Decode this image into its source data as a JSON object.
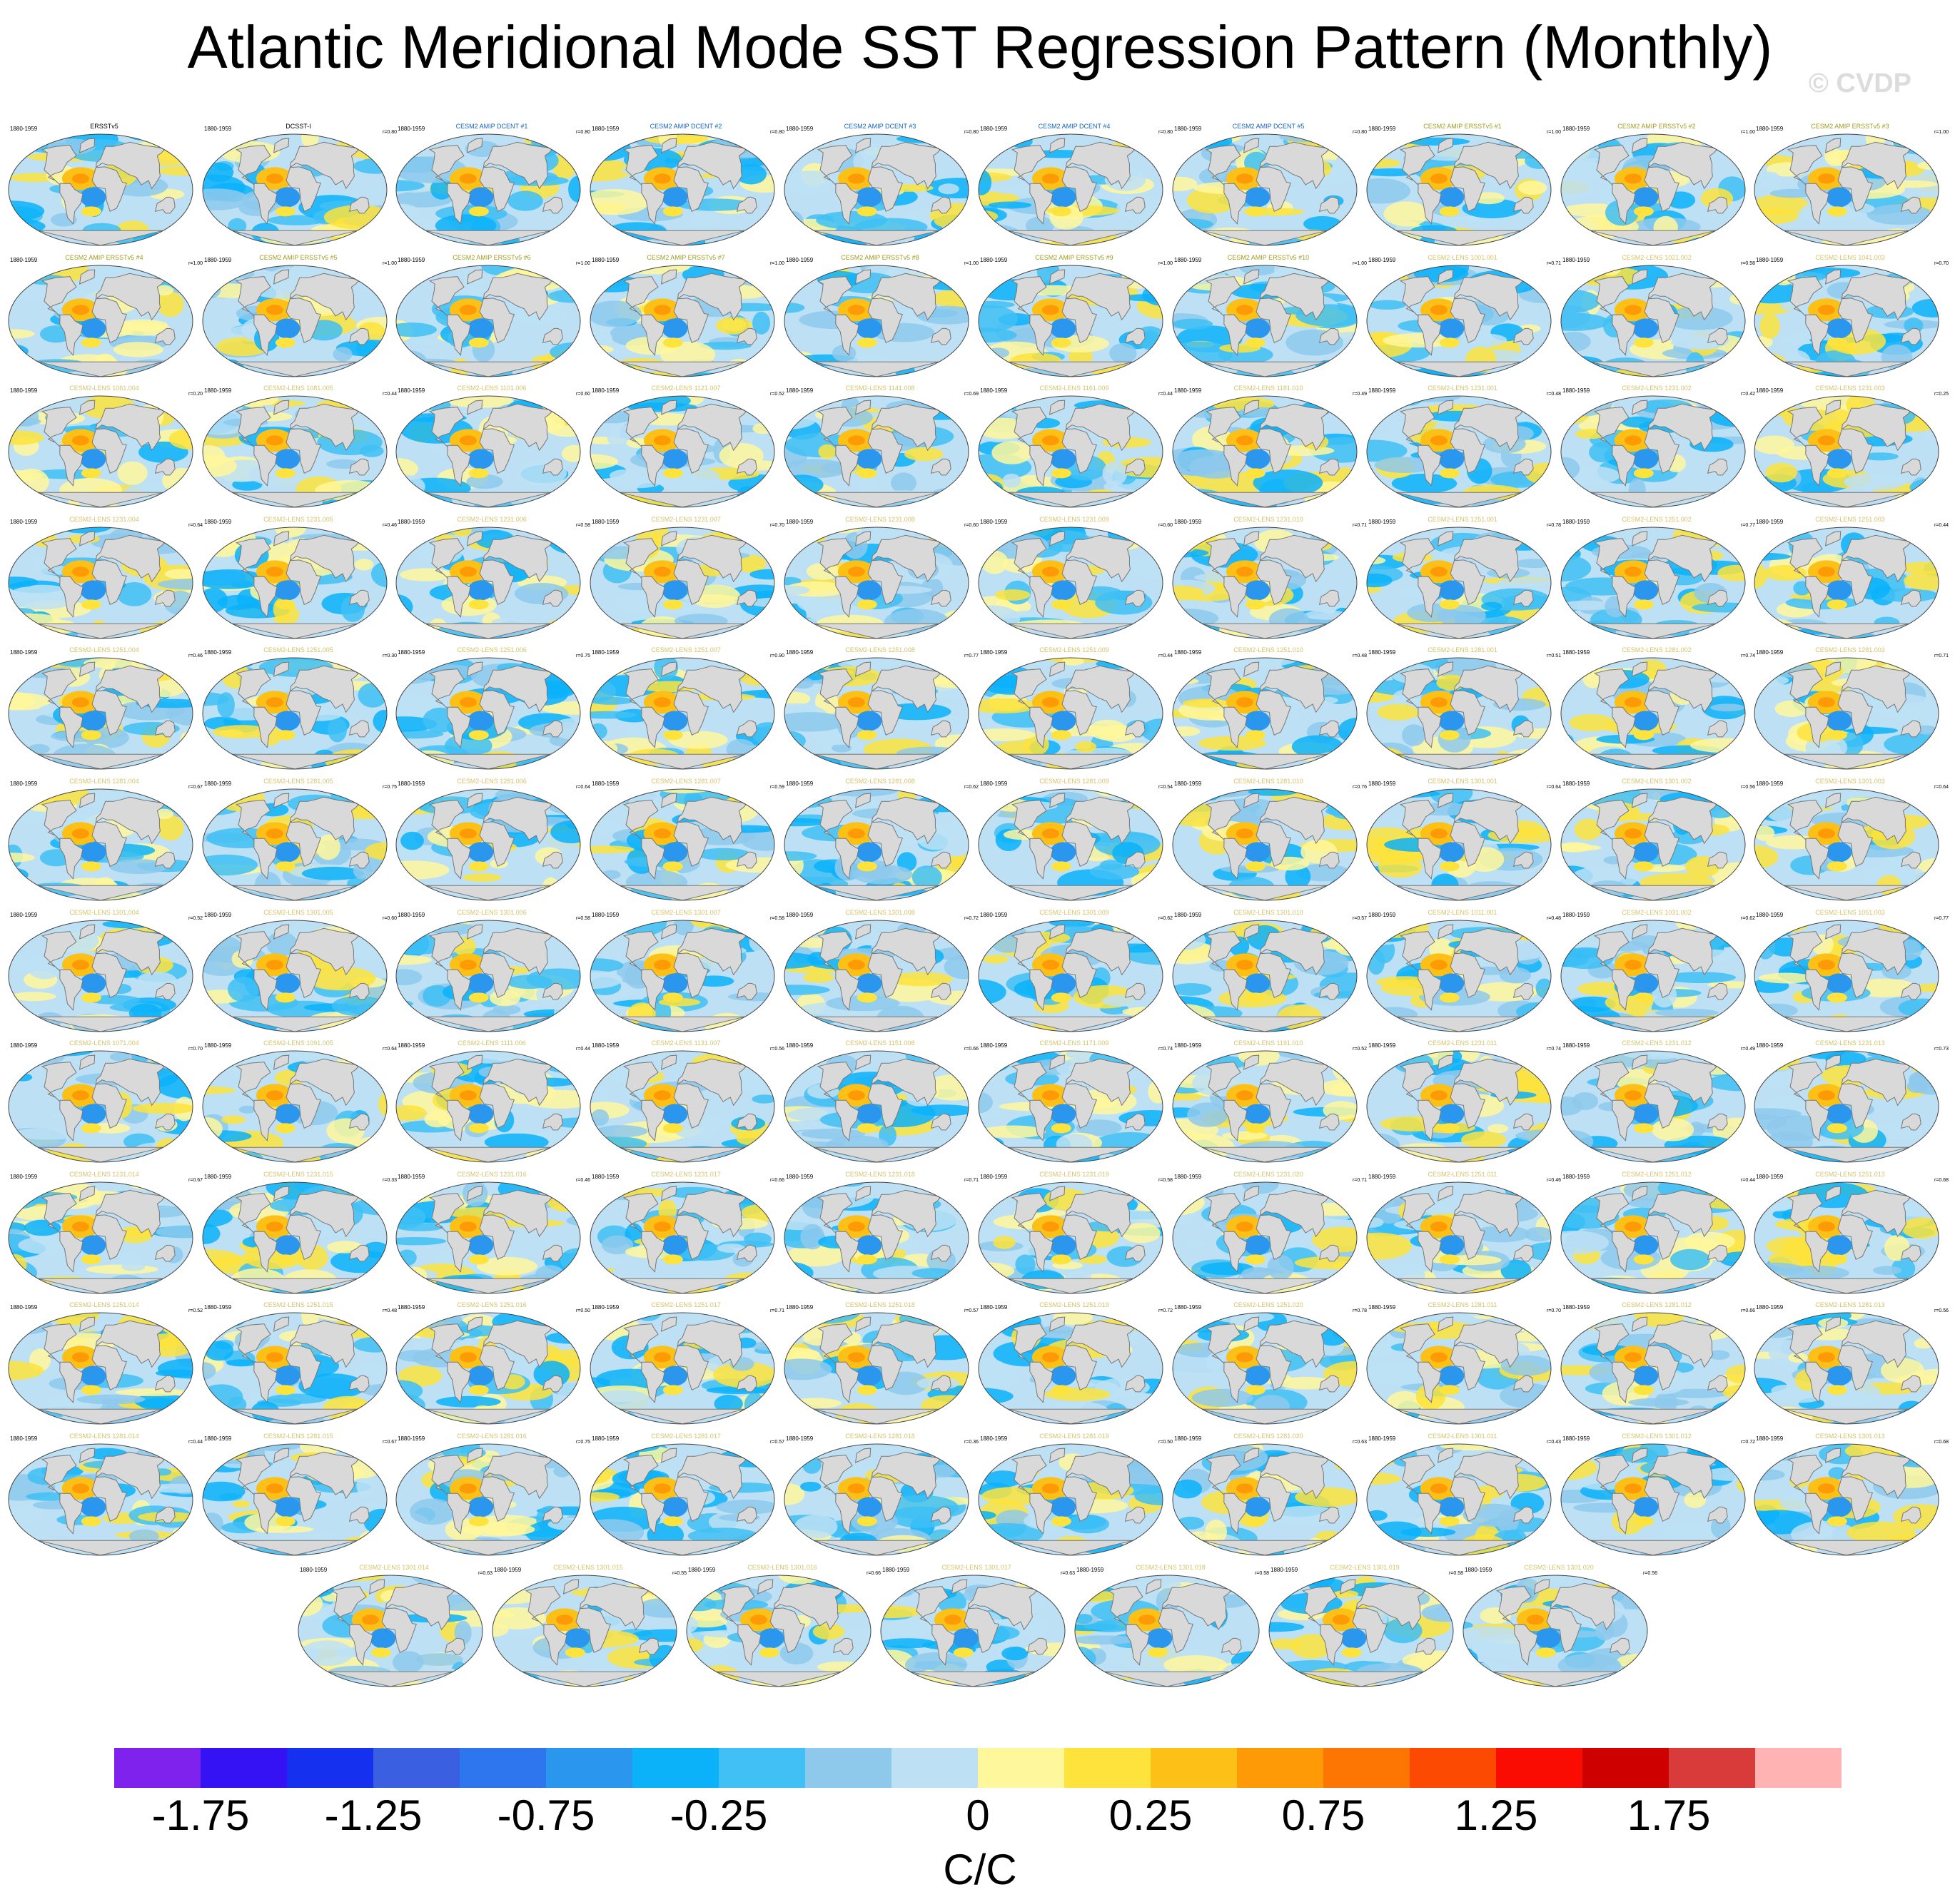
{
  "title": "Atlantic Meridional Mode SST Regression Pattern (Monthly)",
  "watermark": "© CVDP",
  "colors": {
    "obs_title": "#000000",
    "amip_dcent_title": "#1565c0",
    "amip_ersst_title": "#9e9d24",
    "lens_title": "#d4c36a",
    "land": "#d9d9d9",
    "coast": "#777777"
  },
  "chart_data": {
    "type": "map-panels",
    "period": "1880-1959",
    "variable": "SST regression on AMM",
    "colorbar": {
      "units": "C/C",
      "tick_labels": [
        "-1.75",
        "-1.25",
        "-0.75",
        "-0.25",
        "0",
        "0.25",
        "0.75",
        "1.25",
        "1.75"
      ],
      "colors": [
        "#8022ee",
        "#3512f4",
        "#1630f0",
        "#3a5fe0",
        "#2e76ee",
        "#2a96ee",
        "#0bb2fa",
        "#40c0f4",
        "#8ec9ec",
        "#bde0f4",
        "#fff79c",
        "#fde33c",
        "#fdc016",
        "#fd9a06",
        "#fd7502",
        "#fd4a02",
        "#fb0c02",
        "#cf0000",
        "#d93a3a",
        "#ffb3b3"
      ]
    },
    "panels": [
      {
        "title": "ERSSTv5",
        "group": "obs",
        "r": ""
      },
      {
        "title": "DCSST-I",
        "group": "obs",
        "r": "r=0.80"
      },
      {
        "title": "CESM2 AMIP DCENT #1",
        "group": "amip_dcent",
        "r": "r=0.80"
      },
      {
        "title": "CESM2 AMIP DCENT #2",
        "group": "amip_dcent",
        "r": "r=0.80"
      },
      {
        "title": "CESM2 AMIP DCENT #3",
        "group": "amip_dcent",
        "r": "r=0.80"
      },
      {
        "title": "CESM2 AMIP DCENT #4",
        "group": "amip_dcent",
        "r": "r=0.80"
      },
      {
        "title": "CESM2 AMIP DCENT #5",
        "group": "amip_dcent",
        "r": "r=0.80"
      },
      {
        "title": "CESM2 AMIP ERSSTv5 #1",
        "group": "amip_ersst",
        "r": "r=1.00"
      },
      {
        "title": "CESM2 AMIP ERSSTv5 #2",
        "group": "amip_ersst",
        "r": "r=1.00"
      },
      {
        "title": "CESM2 AMIP ERSSTv5 #3",
        "group": "amip_ersst",
        "r": "r=1.00"
      },
      {
        "title": "CESM2 AMIP ERSSTv5 #4",
        "group": "amip_ersst",
        "r": "r=1.00"
      },
      {
        "title": "CESM2 AMIP ERSSTv5 #5",
        "group": "amip_ersst",
        "r": "r=1.00"
      },
      {
        "title": "CESM2 AMIP ERSSTv5 #6",
        "group": "amip_ersst",
        "r": "r=1.00"
      },
      {
        "title": "CESM2 AMIP ERSSTv5 #7",
        "group": "amip_ersst",
        "r": "r=1.00"
      },
      {
        "title": "CESM2 AMIP ERSSTv5 #8",
        "group": "amip_ersst",
        "r": "r=1.00"
      },
      {
        "title": "CESM2 AMIP ERSSTv5 #9",
        "group": "amip_ersst",
        "r": "r=1.00"
      },
      {
        "title": "CESM2 AMIP ERSSTv5 #10",
        "group": "amip_ersst",
        "r": "r=1.00"
      },
      {
        "title": "CESM2-LENS 1001.001",
        "group": "lens",
        "r": "r=0.71"
      },
      {
        "title": "CESM2-LENS 1021.002",
        "group": "lens",
        "r": "r=0.58"
      },
      {
        "title": "CESM2-LENS 1041.003",
        "group": "lens",
        "r": "r=0.70"
      },
      {
        "title": "CESM2-LENS 1061.004",
        "group": "lens",
        "r": "r=0.20"
      },
      {
        "title": "CESM2-LENS 1081.005",
        "group": "lens",
        "r": "r=0.44"
      },
      {
        "title": "CESM2-LENS 1101.006",
        "group": "lens",
        "r": "r=0.60"
      },
      {
        "title": "CESM2-LENS 1121.007",
        "group": "lens",
        "r": "r=0.52"
      },
      {
        "title": "CESM2-LENS 1141.008",
        "group": "lens",
        "r": "r=0.69"
      },
      {
        "title": "CESM2-LENS 1161.009",
        "group": "lens",
        "r": "r=0.44"
      },
      {
        "title": "CESM2-LENS 1181.010",
        "group": "lens",
        "r": "r=0.49"
      },
      {
        "title": "CESM2-LENS 1231.001",
        "group": "lens",
        "r": "r=0.48"
      },
      {
        "title": "CESM2-LENS 1231.002",
        "group": "lens",
        "r": "r=0.42"
      },
      {
        "title": "CESM2-LENS 1231.003",
        "group": "lens",
        "r": "r=0.25"
      },
      {
        "title": "CESM2-LENS 1231.004",
        "group": "lens",
        "r": "r=0.64"
      },
      {
        "title": "CESM2-LENS 1231.005",
        "group": "lens",
        "r": "r=0.46"
      },
      {
        "title": "CESM2-LENS 1231.006",
        "group": "lens",
        "r": "r=0.58"
      },
      {
        "title": "CESM2-LENS 1231.007",
        "group": "lens",
        "r": "r=0.70"
      },
      {
        "title": "CESM2-LENS 1231.008",
        "group": "lens",
        "r": "r=0.60"
      },
      {
        "title": "CESM2-LENS 1231.009",
        "group": "lens",
        "r": "r=0.60"
      },
      {
        "title": "CESM2-LENS 1231.010",
        "group": "lens",
        "r": "r=0.71"
      },
      {
        "title": "CESM2-LENS 1251.001",
        "group": "lens",
        "r": "r=0.78"
      },
      {
        "title": "CESM2-LENS 1251.002",
        "group": "lens",
        "r": "r=0.77"
      },
      {
        "title": "CESM2-LENS 1251.003",
        "group": "lens",
        "r": "r=0.44"
      },
      {
        "title": "CESM2-LENS 1251.004",
        "group": "lens",
        "r": "r=0.46"
      },
      {
        "title": "CESM2-LENS 1251.005",
        "group": "lens",
        "r": "r=0.30"
      },
      {
        "title": "CESM2-LENS 1251.006",
        "group": "lens",
        "r": "r=0.75"
      },
      {
        "title": "CESM2-LENS 1251.007",
        "group": "lens",
        "r": "r=0.90"
      },
      {
        "title": "CESM2-LENS 1251.008",
        "group": "lens",
        "r": "r=0.77"
      },
      {
        "title": "CESM2-LENS 1251.009",
        "group": "lens",
        "r": "r=0.44"
      },
      {
        "title": "CESM2-LENS 1251.010",
        "group": "lens",
        "r": "r=0.48"
      },
      {
        "title": "CESM2-LENS 1281.001",
        "group": "lens",
        "r": "r=0.51"
      },
      {
        "title": "CESM2-LENS 1281.002",
        "group": "lens",
        "r": "r=0.74"
      },
      {
        "title": "CESM2-LENS 1281.003",
        "group": "lens",
        "r": "r=0.71"
      },
      {
        "title": "CESM2-LENS 1281.004",
        "group": "lens",
        "r": "r=0.67"
      },
      {
        "title": "CESM2-LENS 1281.005",
        "group": "lens",
        "r": "r=0.75"
      },
      {
        "title": "CESM2-LENS 1281.006",
        "group": "lens",
        "r": "r=0.64"
      },
      {
        "title": "CESM2-LENS 1281.007",
        "group": "lens",
        "r": "r=0.59"
      },
      {
        "title": "CESM2-LENS 1281.008",
        "group": "lens",
        "r": "r=0.62"
      },
      {
        "title": "CESM2-LENS 1281.009",
        "group": "lens",
        "r": "r=0.54"
      },
      {
        "title": "CESM2-LENS 1281.010",
        "group": "lens",
        "r": "r=0.76"
      },
      {
        "title": "CESM2-LENS 1301.001",
        "group": "lens",
        "r": "r=0.64"
      },
      {
        "title": "CESM2-LENS 1301.002",
        "group": "lens",
        "r": "r=0.56"
      },
      {
        "title": "CESM2-LENS 1301.003",
        "group": "lens",
        "r": "r=0.64"
      },
      {
        "title": "CESM2-LENS 1301.004",
        "group": "lens",
        "r": "r=0.52"
      },
      {
        "title": "CESM2-LENS 1301.005",
        "group": "lens",
        "r": "r=0.60"
      },
      {
        "title": "CESM2-LENS 1301.006",
        "group": "lens",
        "r": "r=0.58"
      },
      {
        "title": "CESM2-LENS 1301.007",
        "group": "lens",
        "r": "r=0.58"
      },
      {
        "title": "CESM2-LENS 1301.008",
        "group": "lens",
        "r": "r=0.72"
      },
      {
        "title": "CESM2-LENS 1301.009",
        "group": "lens",
        "r": "r=0.62"
      },
      {
        "title": "CESM2-LENS 1301.010",
        "group": "lens",
        "r": "r=0.57"
      },
      {
        "title": "CESM2-LENS 1011.001",
        "group": "lens",
        "r": "r=0.48"
      },
      {
        "title": "CESM2-LENS 1031.002",
        "group": "lens",
        "r": "r=0.62"
      },
      {
        "title": "CESM2-LENS 1051.003",
        "group": "lens",
        "r": "r=0.77"
      },
      {
        "title": "CESM2-LENS 1071.004",
        "group": "lens",
        "r": "r=0.70"
      },
      {
        "title": "CESM2-LENS 1091.005",
        "group": "lens",
        "r": "r=0.64"
      },
      {
        "title": "CESM2-LENS 1111.006",
        "group": "lens",
        "r": "r=0.44"
      },
      {
        "title": "CESM2-LENS 1131.007",
        "group": "lens",
        "r": "r=0.56"
      },
      {
        "title": "CESM2-LENS 1151.008",
        "group": "lens",
        "r": "r=0.66"
      },
      {
        "title": "CESM2-LENS 1171.009",
        "group": "lens",
        "r": "r=0.74"
      },
      {
        "title": "CESM2-LENS 1191.010",
        "group": "lens",
        "r": "r=0.52"
      },
      {
        "title": "CESM2-LENS 1231.011",
        "group": "lens",
        "r": "r=0.74"
      },
      {
        "title": "CESM2-LENS 1231.012",
        "group": "lens",
        "r": "r=0.49"
      },
      {
        "title": "CESM2-LENS 1231.013",
        "group": "lens",
        "r": "r=0.73"
      },
      {
        "title": "CESM2-LENS 1231.014",
        "group": "lens",
        "r": "r=0.67"
      },
      {
        "title": "CESM2-LENS 1231.015",
        "group": "lens",
        "r": "r=0.33"
      },
      {
        "title": "CESM2-LENS 1231.016",
        "group": "lens",
        "r": "r=0.46"
      },
      {
        "title": "CESM2-LENS 1231.017",
        "group": "lens",
        "r": "r=0.66"
      },
      {
        "title": "CESM2-LENS 1231.018",
        "group": "lens",
        "r": "r=0.71"
      },
      {
        "title": "CESM2-LENS 1231.019",
        "group": "lens",
        "r": "r=0.58"
      },
      {
        "title": "CESM2-LENS 1231.020",
        "group": "lens",
        "r": "r=0.71"
      },
      {
        "title": "CESM2-LENS 1251.011",
        "group": "lens",
        "r": "r=0.46"
      },
      {
        "title": "CESM2-LENS 1251.012",
        "group": "lens",
        "r": "r=0.44"
      },
      {
        "title": "CESM2-LENS 1251.013",
        "group": "lens",
        "r": "r=0.68"
      },
      {
        "title": "CESM2-LENS 1251.014",
        "group": "lens",
        "r": "r=0.52"
      },
      {
        "title": "CESM2-LENS 1251.015",
        "group": "lens",
        "r": "r=0.48"
      },
      {
        "title": "CESM2-LENS 1251.016",
        "group": "lens",
        "r": "r=0.50"
      },
      {
        "title": "CESM2-LENS 1251.017",
        "group": "lens",
        "r": "r=0.71"
      },
      {
        "title": "CESM2-LENS 1251.018",
        "group": "lens",
        "r": "r=0.57"
      },
      {
        "title": "CESM2-LENS 1251.019",
        "group": "lens",
        "r": "r=0.72"
      },
      {
        "title": "CESM2-LENS 1251.020",
        "group": "lens",
        "r": "r=0.78"
      },
      {
        "title": "CESM2-LENS 1281.011",
        "group": "lens",
        "r": "r=0.70"
      },
      {
        "title": "CESM2-LENS 1281.012",
        "group": "lens",
        "r": "r=0.66"
      },
      {
        "title": "CESM2-LENS 1281.013",
        "group": "lens",
        "r": "r=0.56"
      },
      {
        "title": "CESM2-LENS 1281.014",
        "group": "lens",
        "r": "r=0.44"
      },
      {
        "title": "CESM2-LENS 1281.015",
        "group": "lens",
        "r": "r=0.67"
      },
      {
        "title": "CESM2-LENS 1281.016",
        "group": "lens",
        "r": "r=0.75"
      },
      {
        "title": "CESM2-LENS 1281.017",
        "group": "lens",
        "r": "r=0.57"
      },
      {
        "title": "CESM2-LENS 1281.018",
        "group": "lens",
        "r": "r=0.36"
      },
      {
        "title": "CESM2-LENS 1281.019",
        "group": "lens",
        "r": "r=0.50"
      },
      {
        "title": "CESM2-LENS 1281.020",
        "group": "lens",
        "r": "r=0.63"
      },
      {
        "title": "CESM2-LENS 1301.011",
        "group": "lens",
        "r": "r=0.43"
      },
      {
        "title": "CESM2-LENS 1301.012",
        "group": "lens",
        "r": "r=0.72"
      },
      {
        "title": "CESM2-LENS 1301.013",
        "group": "lens",
        "r": "r=0.68"
      },
      {
        "title": "CESM2-LENS 1301.014",
        "group": "lens",
        "r": "r=0.63"
      },
      {
        "title": "CESM2-LENS 1301.015",
        "group": "lens",
        "r": "r=0.55"
      },
      {
        "title": "CESM2-LENS 1301.016",
        "group": "lens",
        "r": "r=0.66"
      },
      {
        "title": "CESM2-LENS 1301.017",
        "group": "lens",
        "r": "r=0.63"
      },
      {
        "title": "CESM2-LENS 1301.018",
        "group": "lens",
        "r": "r=0.58"
      },
      {
        "title": "CESM2-LENS 1301.019",
        "group": "lens",
        "r": "r=0.58"
      },
      {
        "title": "CESM2-LENS 1301.020",
        "group": "lens",
        "r": "r=0.56"
      }
    ]
  }
}
